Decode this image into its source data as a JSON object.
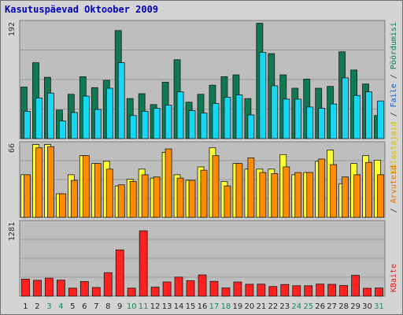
{
  "chart_data": {
    "type": "bar",
    "title": "Kasutuspäevad Oktoober 2009",
    "categories": [
      "1",
      "2",
      "3",
      "4",
      "5",
      "6",
      "7",
      "8",
      "9",
      "10",
      "11",
      "12",
      "13",
      "14",
      "15",
      "16",
      "17",
      "18",
      "19",
      "20",
      "21",
      "22",
      "23",
      "24",
      "25",
      "26",
      "27",
      "28",
      "29",
      "30",
      "31"
    ],
    "weekend_days": [
      "3",
      "4",
      "10",
      "11",
      "17",
      "18",
      "24",
      "25",
      "31"
    ],
    "panels": [
      {
        "axis_max_label": "192",
        "ymax": 192,
        "series": [
          {
            "name": "Pöördumisi",
            "color": "#0f7a52",
            "values": [
              85,
              125,
              101,
              47,
              73,
              102,
              84,
              96,
              178,
              66,
              74,
              56,
              93,
              130,
              60,
              73,
              88,
              102,
              105,
              66,
              190,
              140,
              105,
              83,
              98,
              83,
              86,
              143,
              113,
              90,
              38
            ]
          },
          {
            "name": "Faile",
            "color": "#16d8f5",
            "values": [
              45,
              67,
              75,
              29,
              43,
              70,
              48,
              83,
              125,
              38,
              45,
              50,
              55,
              77,
              46,
              42,
              58,
              68,
              72,
              39,
              142,
              87,
              65,
              65,
              52,
              50,
              57,
              100,
              71,
              77,
              62
            ]
          }
        ]
      },
      {
        "axis_max_label": "66",
        "ymax": 66,
        "series": [
          {
            "name": "Külastajaid",
            "color": "#ffff33",
            "values": [
              38,
              65,
              65,
              21,
              38,
              55,
              48,
              50,
              28,
              34,
              43,
              35,
              58,
              38,
              33,
              45,
              62,
              32,
              48,
              43,
              43,
              43,
              56,
              38,
              40,
              50,
              60,
              30,
              48,
              55,
              51
            ]
          },
          {
            "name": "Arvuteid",
            "color": "#ff8c00",
            "values": [
              38,
              62,
              63,
              21,
              33,
              55,
              48,
              43,
              29,
              32,
              38,
              36,
              61,
              35,
              33,
              42,
              55,
              28,
              48,
              53,
              40,
              39,
              45,
              40,
              40,
              52,
              47,
              36,
              38,
              49,
              38
            ]
          }
        ]
      },
      {
        "axis_max_label": "1281",
        "ymax": 1281,
        "series": [
          {
            "name": "KBaite",
            "color": "#ff2020",
            "values": [
              294,
              273,
              311,
              276,
              138,
              253,
              149,
              406,
              800,
              138,
              1130,
              155,
              245,
              329,
              266,
              367,
              256,
              141,
              245,
              205,
              207,
              167,
              201,
              180,
              179,
              208,
              204,
              183,
              360,
              136,
              140
            ]
          }
        ]
      }
    ],
    "legend_right_top": [
      "Pöördumisi",
      "/",
      "Faile",
      "/",
      "Külastajaid"
    ],
    "legend_right_mid": [
      "Arvuteid",
      "/"
    ],
    "legend_right_bottom": [
      "KBaite"
    ]
  }
}
